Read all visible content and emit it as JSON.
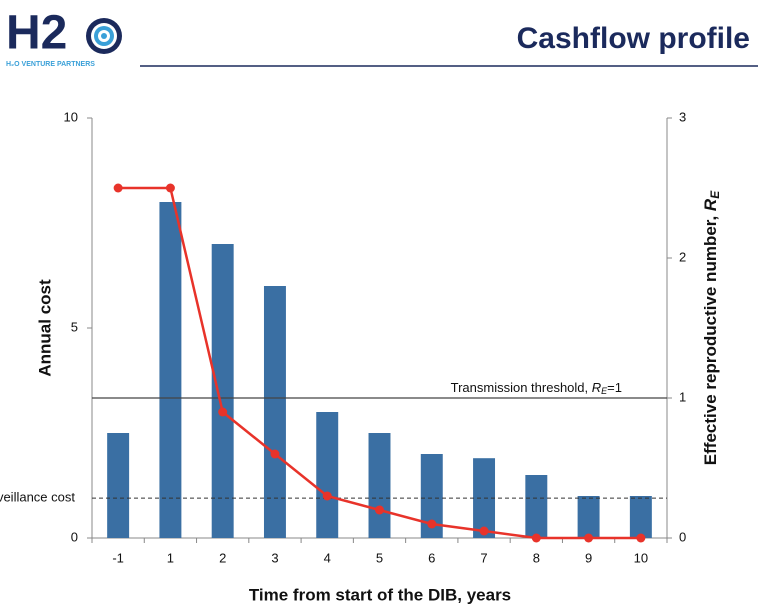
{
  "logo": {
    "text": "H2",
    "tagline": "H₂O VENTURE PARTNERS"
  },
  "chart_data": {
    "type": "bar-line",
    "title": "Cashflow profile",
    "xlabel": "Time from start of the DIB, years",
    "ylabel": "Annual cost",
    "y2label": {
      "text": "Effective reproductive number, ",
      "symbol": "R",
      "subscript": "E"
    },
    "categories": [
      "-1",
      "1",
      "2",
      "3",
      "4",
      "5",
      "6",
      "7",
      "8",
      "9",
      "10"
    ],
    "series": [
      {
        "name": "Annual cost",
        "type": "bar",
        "color": "#3a6fa3",
        "values": [
          2.5,
          8,
          7,
          6,
          3,
          2.5,
          2,
          1.9,
          1.5,
          1,
          1
        ]
      },
      {
        "name": "Effective reproductive number",
        "type": "line",
        "axis": "y2",
        "color": "#e8332a",
        "values": [
          2.5,
          2.5,
          0.9,
          0.6,
          0.3,
          0.2,
          0.1,
          0.05,
          0,
          0,
          0
        ]
      }
    ],
    "ylim": [
      0,
      10
    ],
    "yticks": [
      0,
      5,
      10
    ],
    "y2lim": [
      0,
      3
    ],
    "y2ticks": [
      0,
      1,
      2,
      3
    ],
    "threshold": {
      "value": 1,
      "axis": "y2",
      "text": "Transmission threshold, ",
      "symbol": "R",
      "subscript": "E",
      "suffix": "=1"
    },
    "surveillance": {
      "value": 0.95,
      "text": "Surveillance cost"
    }
  }
}
